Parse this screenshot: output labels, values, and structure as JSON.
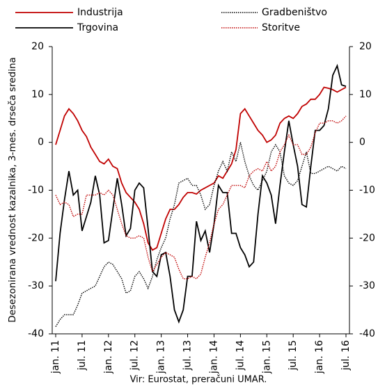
{
  "chart_data": {
    "type": "line",
    "y_label": "Desezonirana vrednost kazalnika, 3-mes. drseča sredina",
    "source": "Vir: Eurostat, preračuni UMAR.",
    "categories": [
      "jan. 11",
      null,
      null,
      null,
      null,
      null,
      "jul. 11",
      null,
      null,
      null,
      null,
      null,
      "jan. 12",
      null,
      null,
      null,
      null,
      null,
      "jul. 12",
      null,
      null,
      null,
      null,
      null,
      "jan. 13",
      null,
      null,
      null,
      null,
      null,
      "jul. 13",
      null,
      null,
      null,
      null,
      null,
      "jan. 14",
      null,
      null,
      null,
      null,
      null,
      "jul. 14",
      null,
      null,
      null,
      null,
      null,
      "jan. 15",
      null,
      null,
      null,
      null,
      null,
      "jul. 15",
      null,
      null,
      null,
      null,
      null,
      "jan. 16",
      null,
      null,
      null,
      null,
      null,
      "jul. 16"
    ],
    "series": [
      {
        "name": "Industrija",
        "color": "#c00000",
        "style": "solid",
        "values": [
          -0.5,
          2.5,
          5.5,
          7,
          6,
          4.5,
          2.5,
          1.2,
          -1,
          -2.5,
          -4,
          -4.5,
          -3.5,
          -5,
          -5.5,
          -8.5,
          -10.5,
          -11.5,
          -12.5,
          -14,
          -17,
          -21,
          -22.5,
          -22,
          -19,
          -16,
          -14,
          -14,
          -13,
          -11.5,
          -10.5,
          -10.5,
          -10.8,
          -10,
          -9.5,
          -9,
          -8.5,
          -7,
          -7.5,
          -6,
          -4.5,
          -1.5,
          6,
          7,
          5.5,
          4,
          2.5,
          1.5,
          0,
          0.5,
          1.5,
          4,
          5,
          5.5,
          5,
          6,
          7.5,
          8,
          9,
          9,
          10,
          11.5,
          11.3,
          11,
          10.5,
          11,
          11.5
        ]
      },
      {
        "name": "Trgovina",
        "color": "#000000",
        "style": "solid",
        "values": [
          -29,
          -19,
          -12,
          -6,
          -11,
          -10,
          -18.5,
          -15.5,
          -12.5,
          -7,
          -11,
          -21,
          -20.5,
          -14,
          -7.5,
          -13,
          -19.5,
          -18,
          -10,
          -8.5,
          -9.5,
          -18,
          -27,
          -28,
          -23.5,
          -23,
          -28,
          -35,
          -37.5,
          -35,
          -28,
          -28,
          -16.5,
          -20.5,
          -18.5,
          -23,
          -17,
          -9,
          -10.5,
          -10.5,
          -19,
          -19,
          -22,
          -23.5,
          -26,
          -25,
          -15,
          -7,
          -8.5,
          -11,
          -17,
          -9,
          -2,
          4.5,
          -0.5,
          -5,
          -13,
          -13.5,
          -5,
          2.5,
          2.5,
          3.5,
          7,
          14,
          16,
          12,
          11.7
        ]
      },
      {
        "name": "Gradbeništvo",
        "color": "#000000",
        "style": "dotted",
        "values": [
          -38.5,
          -37,
          -36,
          -36,
          -36,
          -34,
          -31.5,
          -31,
          -30.5,
          -30,
          -28,
          -26,
          -25,
          -25.5,
          -27,
          -28.5,
          -31.5,
          -31,
          -28,
          -27,
          -28.5,
          -30.5,
          -28,
          -24.5,
          -22,
          -20,
          -16,
          -13,
          -8.5,
          -8,
          -7.5,
          -9,
          -9,
          -11,
          -14,
          -13,
          -9,
          -6,
          -4,
          -6,
          -2,
          -4,
          0,
          -4,
          -7,
          -9,
          -10,
          -8,
          -6,
          -2,
          -0.5,
          -2,
          -7,
          -8.5,
          -9,
          -8,
          -5,
          -2,
          -6.5,
          -6.5,
          -6,
          -5.5,
          -5,
          -5.5,
          -6,
          -5,
          -5.5
        ]
      },
      {
        "name": "Storitve",
        "color": "#c00000",
        "style": "dotted",
        "values": [
          -11,
          -13,
          -12.5,
          -13,
          -15.5,
          -15,
          -15,
          -11,
          -11,
          -11,
          -10.5,
          -11,
          -10,
          -11,
          -14,
          -17,
          -19.5,
          -20,
          -20,
          -19.5,
          -20,
          -24,
          -27,
          -25.5,
          -24,
          -23,
          -23.5,
          -24,
          -26.5,
          -28.5,
          -28.5,
          -28,
          -28.5,
          -27.5,
          -24,
          -21,
          -17,
          -14,
          -13,
          -11,
          -9,
          -9,
          -9,
          -9.5,
          -7,
          -6,
          -5.5,
          -6,
          -4,
          -6,
          -5,
          -2,
          -0.5,
          1.5,
          -0.5,
          -0.5,
          -2.5,
          -2.5,
          -1,
          2,
          4,
          4,
          4.5,
          4.5,
          4,
          4.5,
          5.5
        ]
      }
    ],
    "ylim": [
      -40,
      20
    ],
    "yticks": [
      -40,
      -30,
      -20,
      -10,
      0,
      10,
      20
    ],
    "y2lim": [
      -40,
      20
    ],
    "y2ticks": [
      -40,
      -30,
      -20,
      -10,
      0,
      10,
      20
    ],
    "grid": false
  }
}
